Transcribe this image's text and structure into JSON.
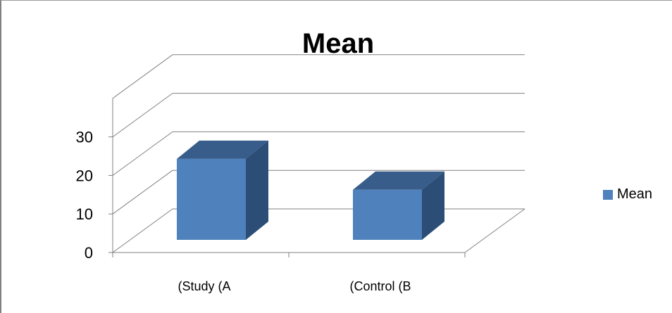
{
  "chart_data": {
    "type": "bar",
    "title": "Mean",
    "categories": [
      "(Study (A",
      "(Control (B"
    ],
    "series": [
      {
        "name": "Mean",
        "values": [
          21,
          13
        ]
      }
    ],
    "ylim": [
      0,
      40
    ],
    "yticks": [
      0,
      10,
      20,
      30
    ],
    "xlabel": "",
    "ylabel": "",
    "grid": true,
    "three_d": true,
    "legend_position": "right",
    "colors": {
      "front": "#4f81bd",
      "top": "#385d8a",
      "side": "#2c4d75",
      "grid": "#808080"
    }
  }
}
